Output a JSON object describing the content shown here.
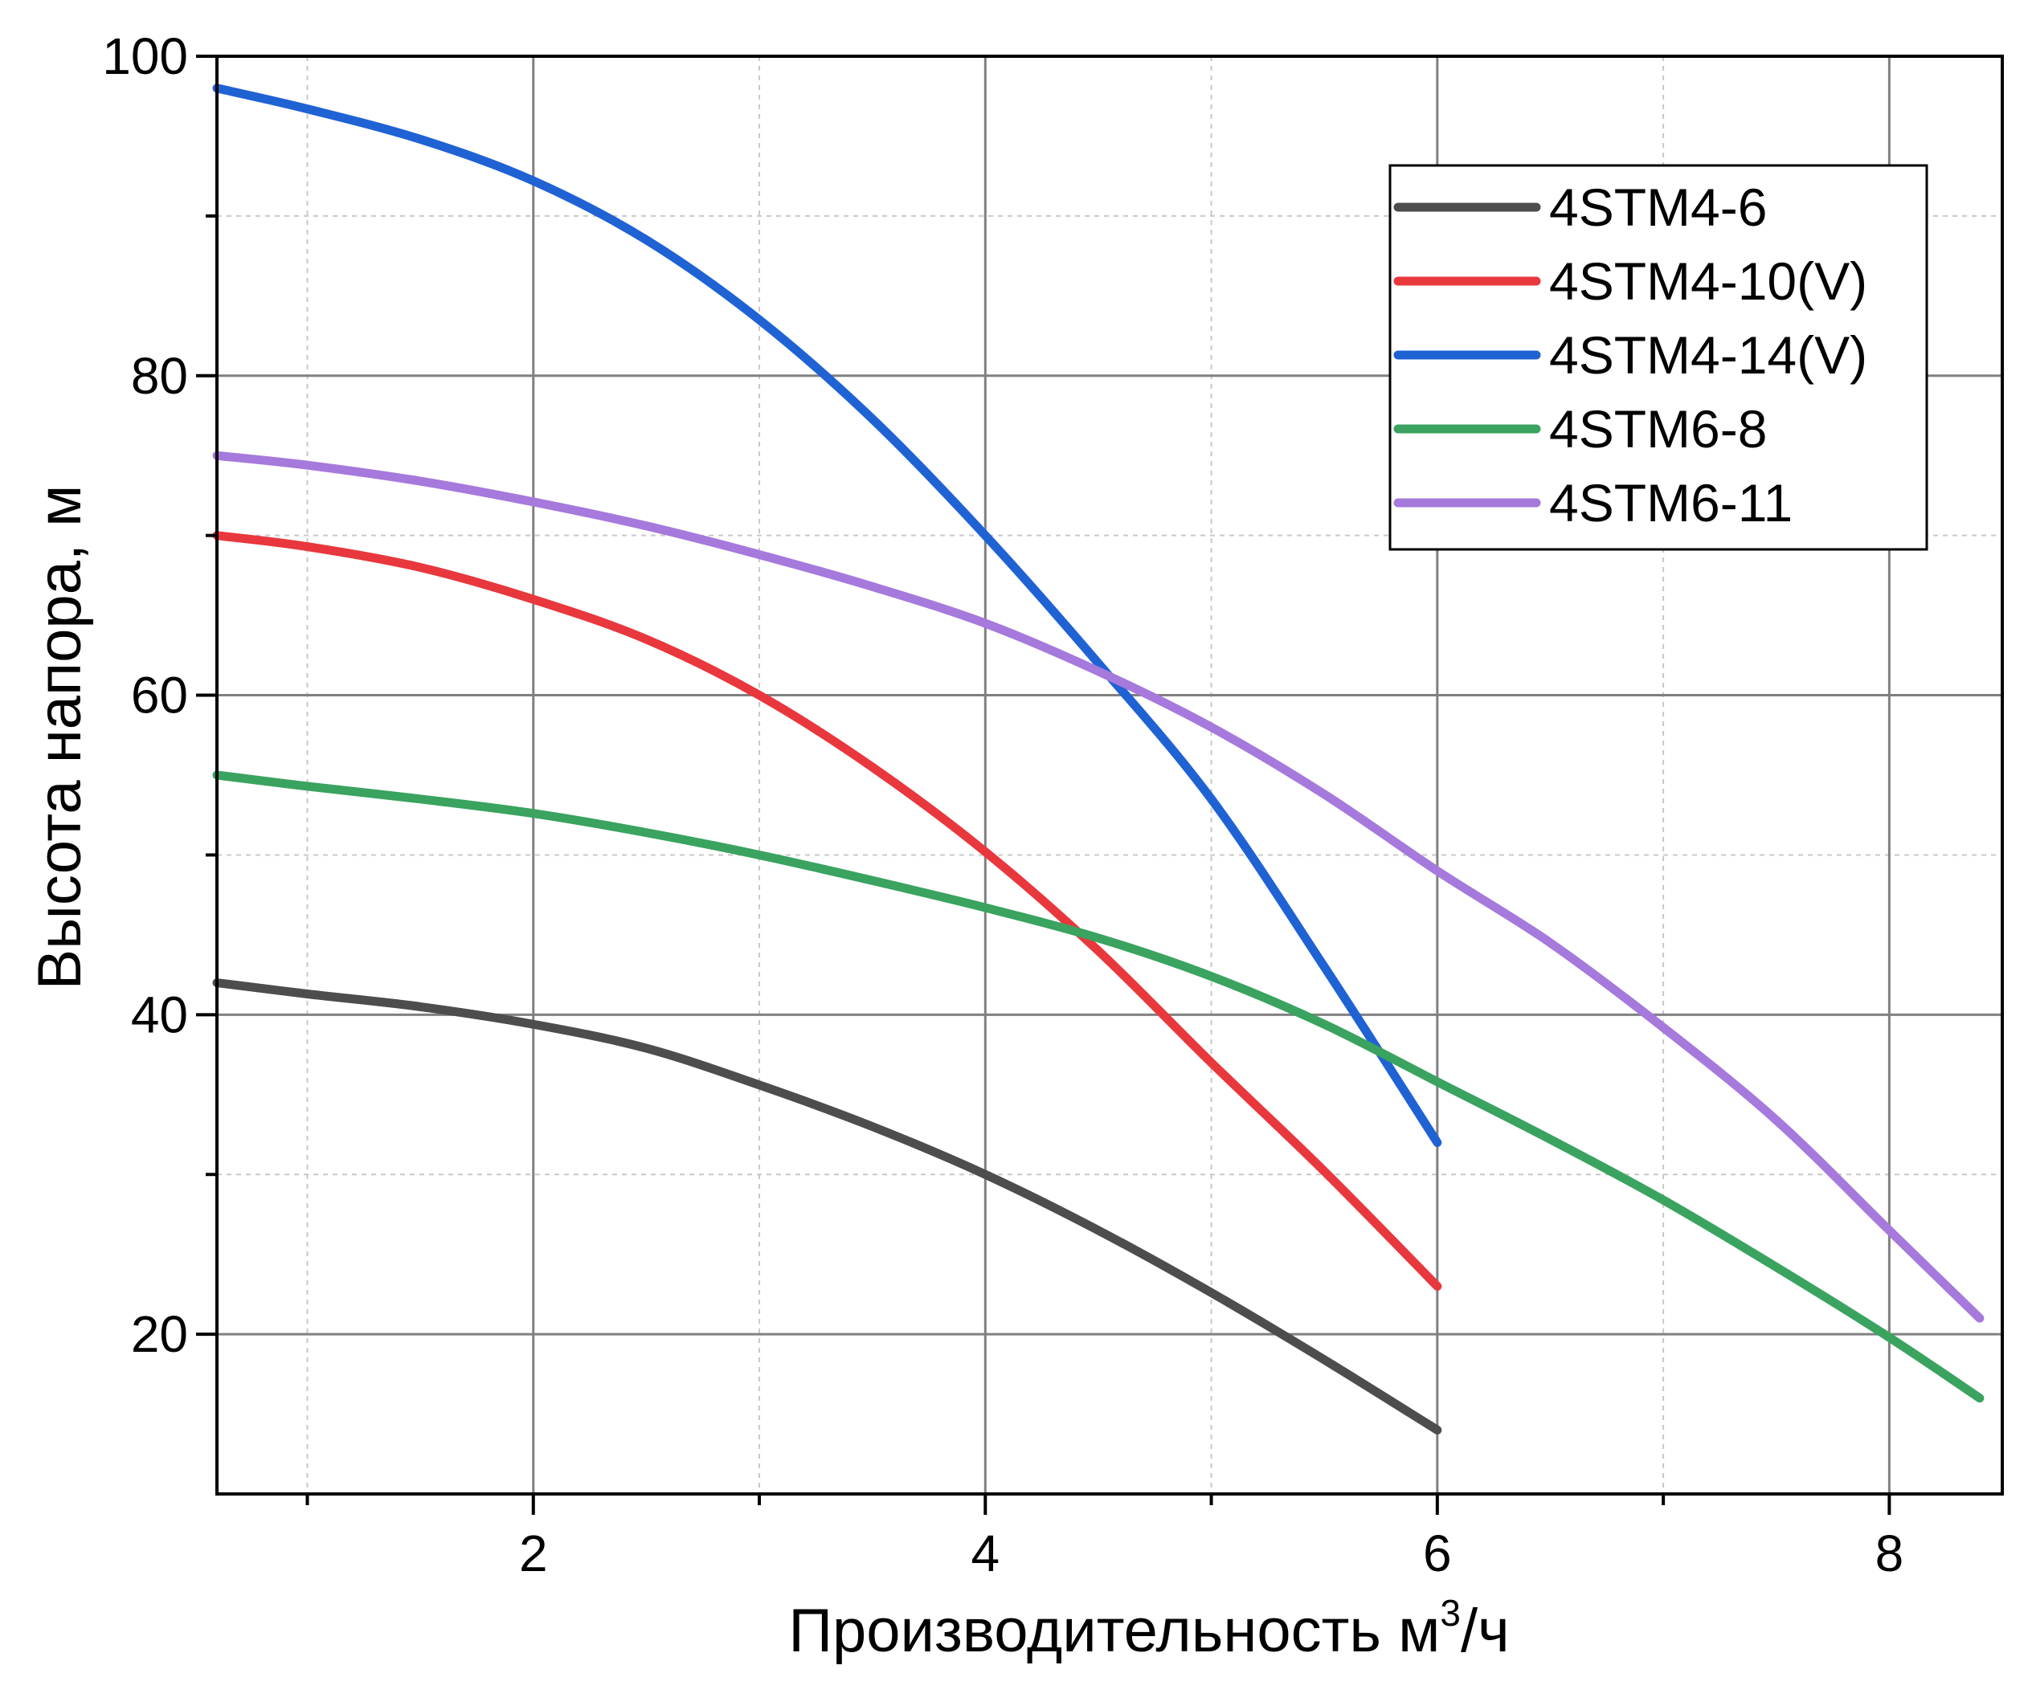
{
  "chart_data": {
    "type": "line",
    "xlabel": "Производительность м",
    "xlabel_sup": "3",
    "xlabel_tail": "/ч",
    "ylabel": "Высота напора, м",
    "xlim": [
      0.6,
      8.5
    ],
    "ylim": [
      10,
      100
    ],
    "x_ticks": [
      2,
      4,
      6,
      8
    ],
    "x_minor_ticks": [
      1,
      3,
      5,
      7
    ],
    "y_ticks": [
      20,
      40,
      60,
      80,
      100
    ],
    "y_minor_ticks": [
      30,
      50,
      70,
      90
    ],
    "x_tick_labels": [
      "2",
      "4",
      "6",
      "8"
    ],
    "y_tick_labels": [
      "20",
      "40",
      "60",
      "80",
      "100"
    ],
    "grid": true,
    "legend_position": "top-right",
    "series": [
      {
        "name": "4STM4-6",
        "color": "#4d4d4d",
        "x": [
          0.6,
          1.0,
          1.5,
          2.0,
          2.5,
          3.0,
          3.5,
          4.0,
          4.5,
          5.0,
          5.5,
          6.0
        ],
        "y": [
          42,
          41.3,
          40.5,
          39.4,
          37.9,
          35.6,
          33,
          30,
          26.5,
          22.6,
          18.4,
          14
        ]
      },
      {
        "name": "4STM4-10(V)",
        "color": "#e8383d",
        "x": [
          0.6,
          1.0,
          1.5,
          2.0,
          2.5,
          3.0,
          3.5,
          4.0,
          4.5,
          5.0,
          5.5,
          6.0
        ],
        "y": [
          70,
          69.3,
          68,
          66,
          63.5,
          60,
          55.5,
          50.2,
          44,
          37,
          30.2,
          23
        ]
      },
      {
        "name": "4STM4-14(V)",
        "color": "#1f62d4",
        "x": [
          0.6,
          1.0,
          1.5,
          2.0,
          2.5,
          3.0,
          3.5,
          4.0,
          4.5,
          5.0,
          5.5,
          6.0
        ],
        "y": [
          98,
          96.7,
          94.8,
          92.2,
          88.5,
          83.5,
          77.3,
          70,
          62,
          53.5,
          43,
          32
        ]
      },
      {
        "name": "4STM6-8",
        "color": "#3aa35f",
        "x": [
          0.6,
          1.0,
          1.5,
          2.0,
          2.5,
          3.0,
          3.5,
          4.0,
          4.5,
          5.0,
          5.5,
          6.0,
          6.5,
          7.0,
          7.5,
          8.0,
          8.4
        ],
        "y": [
          55,
          54.3,
          53.5,
          52.6,
          51.4,
          50,
          48.4,
          46.7,
          44.8,
          42.4,
          39.4,
          35.8,
          32.2,
          28.4,
          24.2,
          19.8,
          16
        ]
      },
      {
        "name": "4STM6-11",
        "color": "#a679dc",
        "x": [
          0.6,
          1.0,
          1.5,
          2.0,
          2.5,
          3.0,
          3.5,
          4.0,
          4.5,
          5.0,
          5.5,
          6.0,
          6.5,
          7.0,
          7.5,
          8.0,
          8.4
        ],
        "y": [
          75,
          74.4,
          73.4,
          72.1,
          70.6,
          68.8,
          66.8,
          64.5,
          61.5,
          58,
          53.8,
          49,
          44.5,
          39.2,
          33.4,
          26.5,
          21
        ]
      }
    ]
  }
}
